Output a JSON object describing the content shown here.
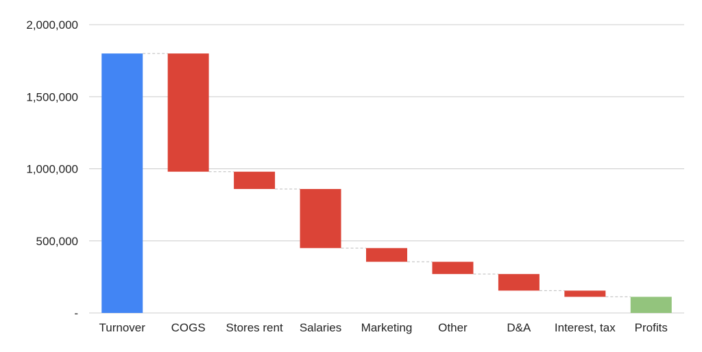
{
  "chart_data": {
    "type": "waterfall",
    "title": "",
    "xlabel": "",
    "ylabel": "",
    "ylim": [
      0,
      2000000
    ],
    "y_ticks": [
      {
        "value": 0,
        "label": "-"
      },
      {
        "value": 500000,
        "label": "500,000"
      },
      {
        "value": 1000000,
        "label": "1,000,000"
      },
      {
        "value": 1500000,
        "label": "1,500,000"
      },
      {
        "value": 2000000,
        "label": "2,000,000"
      }
    ],
    "grid": true,
    "legend": "none",
    "categories": [
      "Turnover",
      "COGS",
      "Stores rent",
      "Salaries",
      "Marketing",
      "Other",
      "D&A",
      "Interest, tax",
      "Profits"
    ],
    "bars": [
      {
        "label": "Turnover",
        "kind": "total",
        "start": 0,
        "end": 1800000
      },
      {
        "label": "COGS",
        "kind": "decrease",
        "start": 1800000,
        "end": 980000
      },
      {
        "label": "Stores rent",
        "kind": "decrease",
        "start": 980000,
        "end": 860000
      },
      {
        "label": "Salaries",
        "kind": "decrease",
        "start": 860000,
        "end": 450000
      },
      {
        "label": "Marketing",
        "kind": "decrease",
        "start": 450000,
        "end": 355000
      },
      {
        "label": "Other",
        "kind": "decrease",
        "start": 355000,
        "end": 270000
      },
      {
        "label": "D&A",
        "kind": "decrease",
        "start": 270000,
        "end": 155000
      },
      {
        "label": "Interest, tax",
        "kind": "decrease",
        "start": 155000,
        "end": 112000
      },
      {
        "label": "Profits",
        "kind": "total",
        "start": 0,
        "end": 112000
      }
    ],
    "colors": {
      "total_start": "#4285f4",
      "decrease": "#db4437",
      "total_end": "#93c47d",
      "gridline": "#cccccc",
      "connector": "#bbbbbb"
    }
  }
}
